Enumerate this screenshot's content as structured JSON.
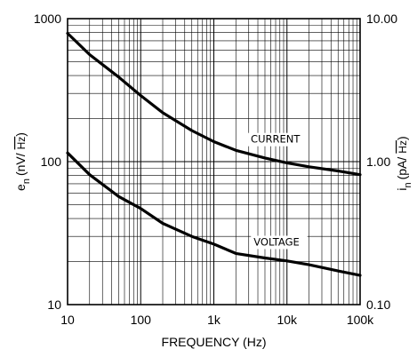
{
  "chart_data": {
    "type": "line",
    "xscale": "log",
    "yscale": "log",
    "xlabel": "FREQUENCY (Hz)",
    "ylabel_left": "e",
    "ylabel_left_sub": "n",
    "ylabel_left_unit": "(nV/",
    "ylabel_left_rad": "Hz",
    "ylabel_left_close": ")",
    "ylabel_right": "i",
    "ylabel_right_sub": "n",
    "ylabel_right_unit": "(pA/",
    "ylabel_right_rad": "Hz",
    "ylabel_right_close": ")",
    "xlim": [
      10,
      100000
    ],
    "ylim_left": [
      10,
      1000
    ],
    "ylim_right": [
      0.1,
      10
    ],
    "x_ticks": [
      {
        "value": 10,
        "label": "10"
      },
      {
        "value": 100,
        "label": "100"
      },
      {
        "value": 1000,
        "label": "1k"
      },
      {
        "value": 10000,
        "label": "10k"
      },
      {
        "value": 100000,
        "label": "100k"
      }
    ],
    "y_ticks_left": [
      {
        "value": 10,
        "label": "10"
      },
      {
        "value": 100,
        "label": "100"
      },
      {
        "value": 1000,
        "label": "1000"
      }
    ],
    "y_ticks_right": [
      {
        "value": 0.1,
        "label": "0.10"
      },
      {
        "value": 1,
        "label": "1.00"
      },
      {
        "value": 10,
        "label": "10.00"
      }
    ],
    "grid": true,
    "series": [
      {
        "name": "CURRENT",
        "axis": "right",
        "x": [
          10,
          20,
          50,
          100,
          200,
          500,
          1000,
          2000,
          5000,
          10000,
          20000,
          50000,
          100000
        ],
        "y": [
          7.9,
          5.6,
          3.9,
          2.9,
          2.2,
          1.65,
          1.38,
          1.2,
          1.06,
          0.98,
          0.92,
          0.86,
          0.81
        ]
      },
      {
        "name": "VOLTAGE",
        "axis": "left",
        "x": [
          10,
          20,
          50,
          100,
          200,
          500,
          1000,
          2000,
          5000,
          10000,
          20000,
          50000,
          100000
        ],
        "y": [
          115,
          81,
          57,
          47,
          37,
          30,
          26.5,
          22.8,
          21.2,
          20.2,
          19,
          17.2,
          16
        ]
      }
    ]
  }
}
